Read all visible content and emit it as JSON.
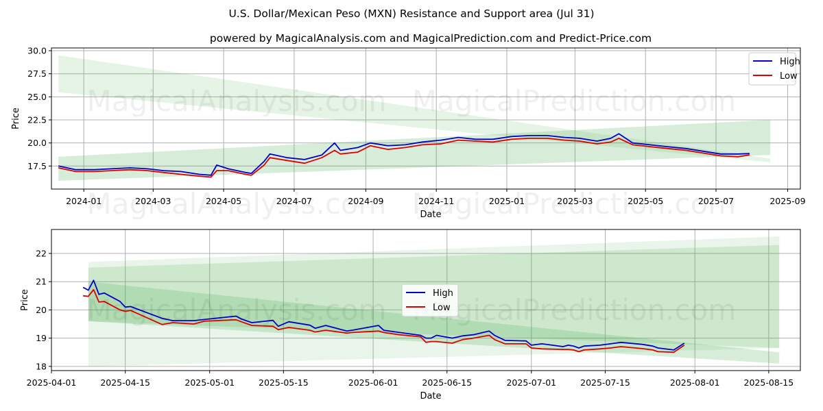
{
  "title": "U.S. Dollar/Mexican Peso (MXN) Resistance and Support area (Jul 31)",
  "subtitle": "powered by MagicalAnalysis.com and MagicalPrediction.com and Predict-Price.com",
  "watermarks": [
    "MagicalAnalysis.com",
    "MagicalPrediction.com"
  ],
  "colors": {
    "high": "#0000cc",
    "low": "#dd0000",
    "band": "#4caf50",
    "grid": "#b0b0b0"
  },
  "chart_data": [
    {
      "type": "line",
      "xlabel": "Date",
      "ylabel": "Price",
      "ylim": [
        15,
        30.3
      ],
      "xlim": [
        "2023-12-04",
        "2025-09-12"
      ],
      "yticks": [
        "17.5",
        "20.0",
        "22.5",
        "25.0",
        "27.5",
        "30.0"
      ],
      "xticks": [
        "2024-01",
        "2024-03",
        "2024-05",
        "2024-07",
        "2024-09",
        "2024-11",
        "2025-01",
        "2025-03",
        "2025-05",
        "2025-07",
        "2025-09"
      ],
      "grid": true,
      "legend_position": "top-right",
      "bands": [
        {
          "x": [
            "2023-12-10",
            "2025-08-17"
          ],
          "upper": [
            29.5,
            18.3
          ],
          "lower": [
            25.5,
            17.9
          ]
        },
        {
          "x": [
            "2023-12-10",
            "2025-08-17"
          ],
          "upper": [
            18.5,
            22.5
          ],
          "lower": [
            15.9,
            18.7
          ]
        }
      ],
      "series": [
        {
          "name": "High",
          "x": [
            "2023-12-10",
            "2023-12-25",
            "2024-01-10",
            "2024-01-25",
            "2024-02-10",
            "2024-02-25",
            "2024-03-10",
            "2024-03-25",
            "2024-04-10",
            "2024-04-20",
            "2024-04-25",
            "2024-05-05",
            "2024-05-20",
            "2024-05-25",
            "2024-06-05",
            "2024-06-10",
            "2024-06-25",
            "2024-07-10",
            "2024-07-25",
            "2024-08-05",
            "2024-08-10",
            "2024-08-25",
            "2024-09-05",
            "2024-09-20",
            "2024-10-05",
            "2024-10-20",
            "2024-11-05",
            "2024-11-20",
            "2024-12-05",
            "2024-12-20",
            "2025-01-05",
            "2025-01-20",
            "2025-02-05",
            "2025-02-20",
            "2025-03-05",
            "2025-03-20",
            "2025-04-01",
            "2025-04-08",
            "2025-04-20",
            "2025-05-05",
            "2025-05-20",
            "2025-06-05",
            "2025-06-20",
            "2025-07-05",
            "2025-07-20",
            "2025-07-30"
          ],
          "values": [
            17.5,
            17.1,
            17.1,
            17.2,
            17.3,
            17.2,
            17.0,
            16.9,
            16.6,
            16.5,
            17.6,
            17.2,
            16.8,
            16.7,
            18.0,
            18.8,
            18.4,
            18.2,
            18.7,
            20.0,
            19.2,
            19.5,
            20.0,
            19.7,
            19.8,
            20.1,
            20.3,
            20.6,
            20.4,
            20.4,
            20.7,
            20.8,
            20.8,
            20.6,
            20.5,
            20.2,
            20.5,
            21.0,
            20.0,
            19.8,
            19.6,
            19.4,
            19.1,
            18.8,
            18.8,
            18.85
          ]
        },
        {
          "name": "Low",
          "x": [
            "2023-12-10",
            "2023-12-25",
            "2024-01-10",
            "2024-01-25",
            "2024-02-10",
            "2024-02-25",
            "2024-03-10",
            "2024-03-25",
            "2024-04-10",
            "2024-04-20",
            "2024-04-25",
            "2024-05-05",
            "2024-05-20",
            "2024-05-25",
            "2024-06-05",
            "2024-06-10",
            "2024-06-25",
            "2024-07-10",
            "2024-07-25",
            "2024-08-05",
            "2024-08-10",
            "2024-08-25",
            "2024-09-05",
            "2024-09-20",
            "2024-10-05",
            "2024-10-20",
            "2024-11-05",
            "2024-11-20",
            "2024-12-05",
            "2024-12-20",
            "2025-01-05",
            "2025-01-20",
            "2025-02-05",
            "2025-02-20",
            "2025-03-05",
            "2025-03-20",
            "2025-04-01",
            "2025-04-08",
            "2025-04-20",
            "2025-05-05",
            "2025-05-20",
            "2025-06-05",
            "2025-06-20",
            "2025-07-05",
            "2025-07-20",
            "2025-07-30"
          ],
          "values": [
            17.3,
            16.9,
            16.9,
            17.0,
            17.1,
            17.0,
            16.8,
            16.6,
            16.4,
            16.3,
            17.0,
            17.0,
            16.6,
            16.5,
            17.6,
            18.4,
            18.1,
            17.8,
            18.4,
            19.2,
            18.8,
            19.0,
            19.7,
            19.3,
            19.5,
            19.8,
            19.9,
            20.3,
            20.2,
            20.1,
            20.4,
            20.5,
            20.5,
            20.3,
            20.2,
            19.9,
            20.1,
            20.5,
            19.8,
            19.6,
            19.4,
            19.2,
            18.9,
            18.6,
            18.5,
            18.7
          ]
        }
      ]
    },
    {
      "type": "line",
      "xlabel": "Date",
      "ylabel": "Price",
      "ylim": [
        17.85,
        22.85
      ],
      "xlim": [
        "2025-04-01",
        "2025-08-21"
      ],
      "yticks": [
        "18",
        "19",
        "20",
        "21",
        "22"
      ],
      "xticks": [
        "2025-04-01",
        "2025-04-15",
        "2025-05-01",
        "2025-05-15",
        "2025-06-01",
        "2025-06-15",
        "2025-07-01",
        "2025-07-15",
        "2025-08-01",
        "2025-08-15"
      ],
      "grid": true,
      "legend_position": "center",
      "bands": [
        {
          "x": [
            "2025-04-08",
            "2025-08-17"
          ],
          "upper": [
            21.7,
            22.6
          ],
          "lower": [
            18.0,
            18.65
          ]
        },
        {
          "x": [
            "2025-04-08",
            "2025-08-17"
          ],
          "upper": [
            21.5,
            22.3
          ],
          "lower": [
            19.6,
            18.65
          ]
        },
        {
          "x": [
            "2025-04-08",
            "2025-08-17"
          ],
          "upper": [
            21.0,
            18.5
          ],
          "lower": [
            19.6,
            18.1
          ]
        }
      ],
      "series": [
        {
          "name": "High",
          "x": [
            "2025-04-07",
            "2025-04-08",
            "2025-04-09",
            "2025-04-10",
            "2025-04-11",
            "2025-04-14",
            "2025-04-15",
            "2025-04-16",
            "2025-04-22",
            "2025-04-24",
            "2025-04-28",
            "2025-04-30",
            "2025-05-06",
            "2025-05-07",
            "2025-05-09",
            "2025-05-13",
            "2025-05-14",
            "2025-05-16",
            "2025-05-20",
            "2025-05-21",
            "2025-05-23",
            "2025-05-27",
            "2025-05-28",
            "2025-06-02",
            "2025-06-03",
            "2025-06-06",
            "2025-06-10",
            "2025-06-11",
            "2025-06-12",
            "2025-06-13",
            "2025-06-16",
            "2025-06-18",
            "2025-06-20",
            "2025-06-23",
            "2025-06-24",
            "2025-06-26",
            "2025-06-30",
            "2025-07-01",
            "2025-07-03",
            "2025-07-07",
            "2025-07-08",
            "2025-07-09",
            "2025-07-10",
            "2025-07-11",
            "2025-07-14",
            "2025-07-16",
            "2025-07-18",
            "2025-07-22",
            "2025-07-24",
            "2025-07-25",
            "2025-07-28",
            "2025-07-30"
          ],
          "values": [
            20.8,
            20.7,
            21.05,
            20.55,
            20.6,
            20.3,
            20.1,
            20.12,
            19.7,
            19.62,
            19.62,
            19.66,
            19.78,
            19.68,
            19.55,
            19.63,
            19.42,
            19.58,
            19.46,
            19.35,
            19.45,
            19.25,
            19.28,
            19.45,
            19.28,
            19.2,
            19.1,
            19.0,
            19.0,
            19.1,
            19.0,
            19.08,
            19.12,
            19.25,
            19.1,
            18.92,
            18.9,
            18.75,
            18.8,
            18.7,
            18.75,
            18.72,
            18.65,
            18.72,
            18.75,
            18.8,
            18.85,
            18.78,
            18.72,
            18.65,
            18.58,
            18.82
          ]
        },
        {
          "name": "Low",
          "x": [
            "2025-04-07",
            "2025-04-08",
            "2025-04-09",
            "2025-04-10",
            "2025-04-11",
            "2025-04-14",
            "2025-04-15",
            "2025-04-16",
            "2025-04-22",
            "2025-04-24",
            "2025-04-28",
            "2025-04-30",
            "2025-05-06",
            "2025-05-07",
            "2025-05-09",
            "2025-05-13",
            "2025-05-14",
            "2025-05-16",
            "2025-05-20",
            "2025-05-21",
            "2025-05-23",
            "2025-05-27",
            "2025-05-28",
            "2025-06-02",
            "2025-06-03",
            "2025-06-06",
            "2025-06-10",
            "2025-06-11",
            "2025-06-12",
            "2025-06-13",
            "2025-06-16",
            "2025-06-18",
            "2025-06-20",
            "2025-06-23",
            "2025-06-24",
            "2025-06-26",
            "2025-06-30",
            "2025-07-01",
            "2025-07-03",
            "2025-07-07",
            "2025-07-08",
            "2025-07-09",
            "2025-07-10",
            "2025-07-11",
            "2025-07-14",
            "2025-07-16",
            "2025-07-18",
            "2025-07-22",
            "2025-07-24",
            "2025-07-25",
            "2025-07-28",
            "2025-07-30"
          ],
          "values": [
            20.5,
            20.48,
            20.72,
            20.28,
            20.3,
            20.0,
            19.95,
            19.98,
            19.48,
            19.55,
            19.5,
            19.6,
            19.65,
            19.58,
            19.45,
            19.42,
            19.3,
            19.38,
            19.28,
            19.22,
            19.28,
            19.18,
            19.2,
            19.25,
            19.2,
            19.12,
            19.05,
            18.85,
            18.88,
            18.88,
            18.82,
            18.95,
            19.0,
            19.1,
            18.95,
            18.8,
            18.8,
            18.65,
            18.62,
            18.6,
            18.6,
            18.58,
            18.52,
            18.58,
            18.62,
            18.65,
            18.7,
            18.63,
            18.58,
            18.52,
            18.5,
            18.75
          ]
        }
      ]
    }
  ]
}
